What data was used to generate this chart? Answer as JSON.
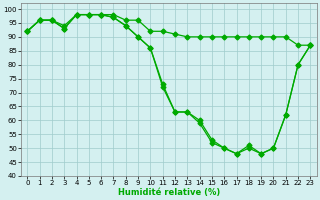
{
  "xlabel": "Humidité relative (%)",
  "xlim": [
    -0.5,
    23.5
  ],
  "ylim": [
    40,
    102
  ],
  "yticks": [
    40,
    45,
    50,
    55,
    60,
    65,
    70,
    75,
    80,
    85,
    90,
    95,
    100
  ],
  "xticks": [
    0,
    1,
    2,
    3,
    4,
    5,
    6,
    7,
    8,
    9,
    10,
    11,
    12,
    13,
    14,
    15,
    16,
    17,
    18,
    19,
    20,
    21,
    22,
    23
  ],
  "background_color": "#d4f0f0",
  "grid_color": "#a0cccc",
  "line_color": "#00aa00",
  "line1": [
    92,
    96,
    96,
    94,
    98,
    98,
    98,
    98,
    96,
    96,
    92,
    92,
    91,
    90,
    90,
    90,
    90,
    90,
    90,
    90,
    90,
    90,
    87,
    87
  ],
  "line2": [
    92,
    96,
    96,
    93,
    98,
    98,
    98,
    97,
    94,
    90,
    86,
    73,
    63,
    63,
    60,
    53,
    50,
    48,
    51,
    48,
    50,
    62,
    80,
    87
  ],
  "line3": [
    92,
    96,
    96,
    93,
    98,
    98,
    98,
    97,
    94,
    90,
    86,
    72,
    63,
    63,
    59,
    52,
    50,
    48,
    50,
    48,
    50,
    62,
    80,
    87
  ],
  "linewidth": 0.9,
  "markersize": 2.5,
  "figsize": [
    3.2,
    2.0
  ],
  "dpi": 100,
  "tick_fontsize": 5,
  "xlabel_fontsize": 6
}
